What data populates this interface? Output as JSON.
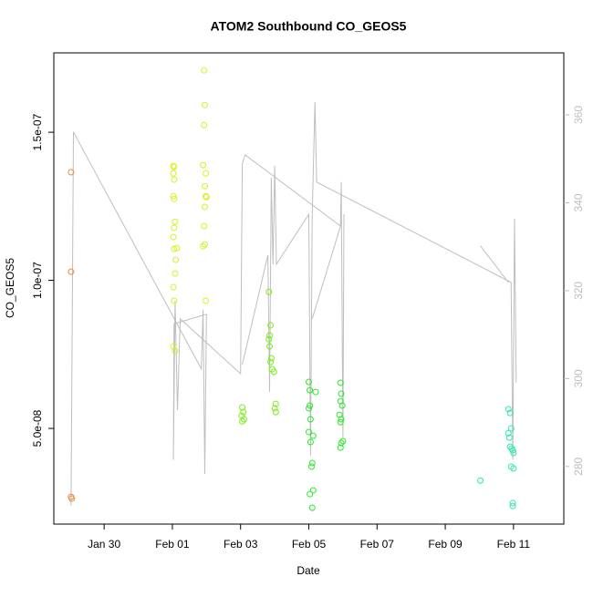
{
  "chart_data": {
    "type": "scatter",
    "title": "ATOM2 Southbound CO_GEOS5",
    "x_label": "Date",
    "y_label": "CO_GEOS5",
    "xlim": [
      28.525,
      43.475
    ],
    "ylim": [
      1.77e-08,
      1.768e-07
    ],
    "y2lim": [
      266.9,
      374.1
    ],
    "xticks": [
      {
        "value": 30,
        "label": "Jan 30"
      },
      {
        "value": 32,
        "label": "Feb 01"
      },
      {
        "value": 34,
        "label": "Feb 03"
      },
      {
        "value": 36,
        "label": "Feb 05"
      },
      {
        "value": 38,
        "label": "Feb 07"
      },
      {
        "value": 40,
        "label": "Feb 09"
      },
      {
        "value": 42,
        "label": "Feb 11"
      }
    ],
    "yticks": [
      {
        "value": 5e-08,
        "label": "5.0e-08"
      },
      {
        "value": 1e-07,
        "label": "1.0e-07"
      },
      {
        "value": 1.5e-07,
        "label": "1.5e-07"
      }
    ],
    "y2ticks": [
      280,
      300,
      320,
      340,
      360
    ],
    "series": [
      {
        "color": "#bebebe",
        "axis": "y2",
        "style": "line",
        "x": [
          29.03,
          29.1,
          32.85,
          32.9,
          32.95,
          33.0,
          32.05,
          32.03,
          32.08,
          32.15,
          32.23,
          34.0,
          34.05,
          34.13,
          36.93,
          null,
          34.05,
          34.8,
          34.85,
          34.9,
          34.95,
          35.0,
          35.05,
          36.0,
          36.05,
          36.1,
          36.18,
          36.23,
          41.93,
          41.98,
          42.03,
          42.08,
          null,
          36.1,
          36.93,
          36.95,
          37.0,
          37.03,
          null,
          41.03,
          41.85
        ],
        "values": [
          271.1,
          356.1,
          302.2,
          315.6,
          278.3,
          314.6,
          312.5,
          281.5,
          317.7,
          292.8,
          313.6,
          301.1,
          348.8,
          350.9,
          334.7,
          null,
          303.2,
          328.1,
          297.0,
          345.7,
          326.0,
          348.4,
          326.0,
          337.4,
          282.5,
          337.4,
          362.9,
          344.7,
          321.9,
          281.5,
          336.4,
          299.1,
          null,
          313.6,
          334.7,
          344.7,
          286.6,
          337.4,
          null,
          330.2,
          321.9
        ]
      },
      {
        "color": "#f0883a",
        "x": [
          29.03,
          29.03,
          29.03,
          29.05
        ],
        "values": [
          1.365e-07,
          1.029e-07,
          2.69e-08,
          2.63e-08
        ]
      },
      {
        "color": "#dcee22",
        "x": [
          32.03,
          32.05,
          32.03,
          32.05,
          32.03,
          32.05,
          32.08,
          32.05,
          32.03,
          32.13,
          32.05,
          32.1,
          32.08,
          32.03,
          32.05,
          32.03,
          32.08,
          32.93,
          32.95,
          32.93,
          32.9,
          32.98,
          32.95,
          32.98,
          33.0,
          32.95,
          32.93,
          32.95,
          32.9,
          32.98
        ],
        "values": [
          1.386e-07,
          1.383e-07,
          1.361e-07,
          1.34e-07,
          1.284e-07,
          1.275e-07,
          1.198e-07,
          1.177e-07,
          1.146e-07,
          1.109e-07,
          1.106e-07,
          1.069e-07,
          1.023e-07,
          9.77e-08,
          9.31e-08,
          7.77e-08,
          7.61e-08,
          1.709e-07,
          1.592e-07,
          1.524e-07,
          1.389e-07,
          1.361e-07,
          1.318e-07,
          1.284e-07,
          1.281e-07,
          1.248e-07,
          1.183e-07,
          1.121e-07,
          1.115e-07,
          9.31e-08
        ]
      },
      {
        "color": "#7cee1a",
        "x": [
          34.05,
          34.08,
          34.03,
          34.1,
          34.05,
          34.83,
          34.88,
          34.85,
          34.83,
          34.85,
          34.9,
          34.88,
          34.93,
          34.98,
          35.03,
          35.0,
          35.03
        ],
        "values": [
          5.71e-08,
          5.55e-08,
          5.43e-08,
          5.31e-08,
          5.24e-08,
          9.61e-08,
          8.48e-08,
          8.14e-08,
          8.01e-08,
          7.77e-08,
          7.37e-08,
          7.24e-08,
          7e-08,
          6.91e-08,
          5.83e-08,
          5.68e-08,
          5.55e-08
        ]
      },
      {
        "color": "#2be82b",
        "x": [
          36.0,
          36.03,
          36.2,
          36.03,
          36.0,
          36.05,
          36.0,
          36.13,
          36.05,
          36.1,
          36.08,
          36.13,
          36.03,
          36.1,
          36.93,
          36.95,
          36.93,
          36.98,
          36.9,
          36.95,
          36.93,
          37.0,
          36.95,
          36.93
        ],
        "values": [
          6.57e-08,
          6.29e-08,
          6.23e-08,
          5.77e-08,
          5.68e-08,
          5.31e-08,
          4.88e-08,
          4.75e-08,
          4.54e-08,
          3.83e-08,
          3.71e-08,
          2.91e-08,
          2.78e-08,
          2.32e-08,
          6.54e-08,
          6.17e-08,
          5.92e-08,
          5.77e-08,
          5.46e-08,
          5.31e-08,
          5.21e-08,
          4.57e-08,
          4.51e-08,
          4.35e-08
        ]
      },
      {
        "color": "#2ee8b0",
        "x": [
          41.03,
          41.85,
          41.9,
          41.93,
          41.85,
          41.88,
          41.9,
          41.95,
          41.98,
          42.0,
          41.93,
          42.0,
          41.98,
          41.98
        ],
        "values": [
          3.24e-08,
          5.65e-08,
          5.52e-08,
          5e-08,
          4.84e-08,
          4.69e-08,
          4.38e-08,
          4.32e-08,
          4.26e-08,
          4.17e-08,
          3.71e-08,
          3.65e-08,
          2.48e-08,
          2.38e-08
        ]
      }
    ]
  }
}
